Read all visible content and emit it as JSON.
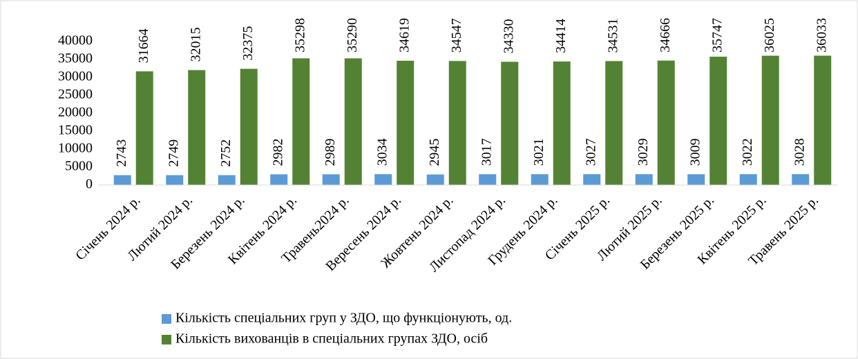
{
  "chart_data": {
    "type": "bar",
    "categories": [
      "Січень 2024 р.",
      "Лютий 2024 р.",
      "Березень 2024 р.",
      "Квітень 2024 р.",
      "Травень2024 р.",
      "Вересень 2024 р.",
      "Жовтень 2024 р.",
      "Листопад 2024 р.",
      "Грудень 2024 р.",
      "Січень 2025 р.",
      "Лютий 2025 р.",
      "Березень 2025 р.",
      "Квітень 2025 р.",
      "Травень 2025 р."
    ],
    "series": [
      {
        "name": "Кількість спеціальних груп у ЗДО, що функціонують, од.",
        "color": "#5b9bd5",
        "values": [
          2743,
          2749,
          2752,
          2982,
          2989,
          3034,
          2945,
          3017,
          3021,
          3027,
          3029,
          3009,
          3022,
          3028
        ]
      },
      {
        "name": "Кількість вихованців в спеціальних групах ЗДО, осіб",
        "color": "#548235",
        "values": [
          31664,
          32015,
          32375,
          35298,
          35290,
          34619,
          34547,
          34330,
          34414,
          34531,
          34666,
          35747,
          36025,
          36033
        ]
      }
    ],
    "ylim": [
      0,
      40000
    ],
    "yticks": [
      0,
      5000,
      10000,
      15000,
      20000,
      25000,
      30000,
      35000,
      40000
    ],
    "grid": false,
    "legend": "bottom",
    "data_labels": true
  }
}
